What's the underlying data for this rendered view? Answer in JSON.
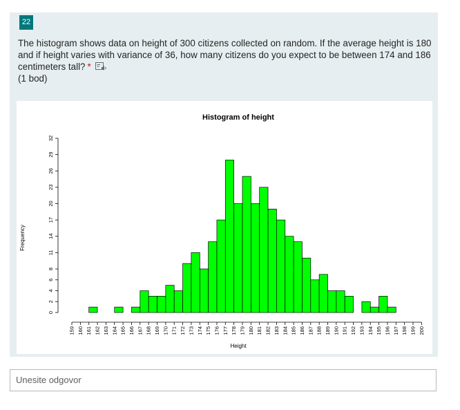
{
  "question": {
    "number": "22",
    "text": "The histogram shows data on height of 300 citizens collected on random. If the average height is 180 and if height varies with variance of 36,  how many citizens do you expect to be between 174 and 186 centimeters tall?",
    "required_marker": "*",
    "points": "(1 bod)",
    "speaker_icon": "immersive-reader-icon"
  },
  "answer": {
    "placeholder": "Unesite odgovor"
  },
  "colors": {
    "badge": "#03787c",
    "card_background": "#e6eef1",
    "bar_fill": "#00ff00",
    "required": "#a4262c"
  },
  "chart_data": {
    "type": "bar",
    "title": "Histogram of height",
    "xlabel": "Height",
    "ylabel": "Frequency",
    "categories": [
      "159",
      "160",
      "161",
      "162",
      "163",
      "164",
      "165",
      "166",
      "167",
      "168",
      "169",
      "170",
      "171",
      "172",
      "173",
      "174",
      "175",
      "176",
      "177",
      "178",
      "179",
      "180",
      "181",
      "182",
      "183",
      "184",
      "185",
      "186",
      "187",
      "188",
      "189",
      "190",
      "191",
      "192",
      "193",
      "194",
      "195",
      "196",
      "197",
      "198",
      "199",
      "200"
    ],
    "values": [
      0,
      0,
      1,
      0,
      0,
      1,
      0,
      1,
      4,
      3,
      3,
      5,
      4,
      9,
      11,
      8,
      13,
      17,
      28,
      20,
      25,
      20,
      23,
      19,
      17,
      14,
      13,
      10,
      6,
      7,
      4,
      4,
      3,
      0,
      2,
      1,
      3,
      1,
      0,
      0,
      0,
      0
    ],
    "y_ticks": [
      "0",
      "2",
      "4",
      "6",
      "8",
      "11",
      "14",
      "17",
      "20",
      "23",
      "26",
      "29",
      "32"
    ],
    "y_tick_values": [
      0,
      2,
      4,
      6,
      8,
      11,
      14,
      17,
      20,
      23,
      26,
      29,
      32
    ],
    "ylim": [
      0,
      32
    ],
    "grid": false
  }
}
